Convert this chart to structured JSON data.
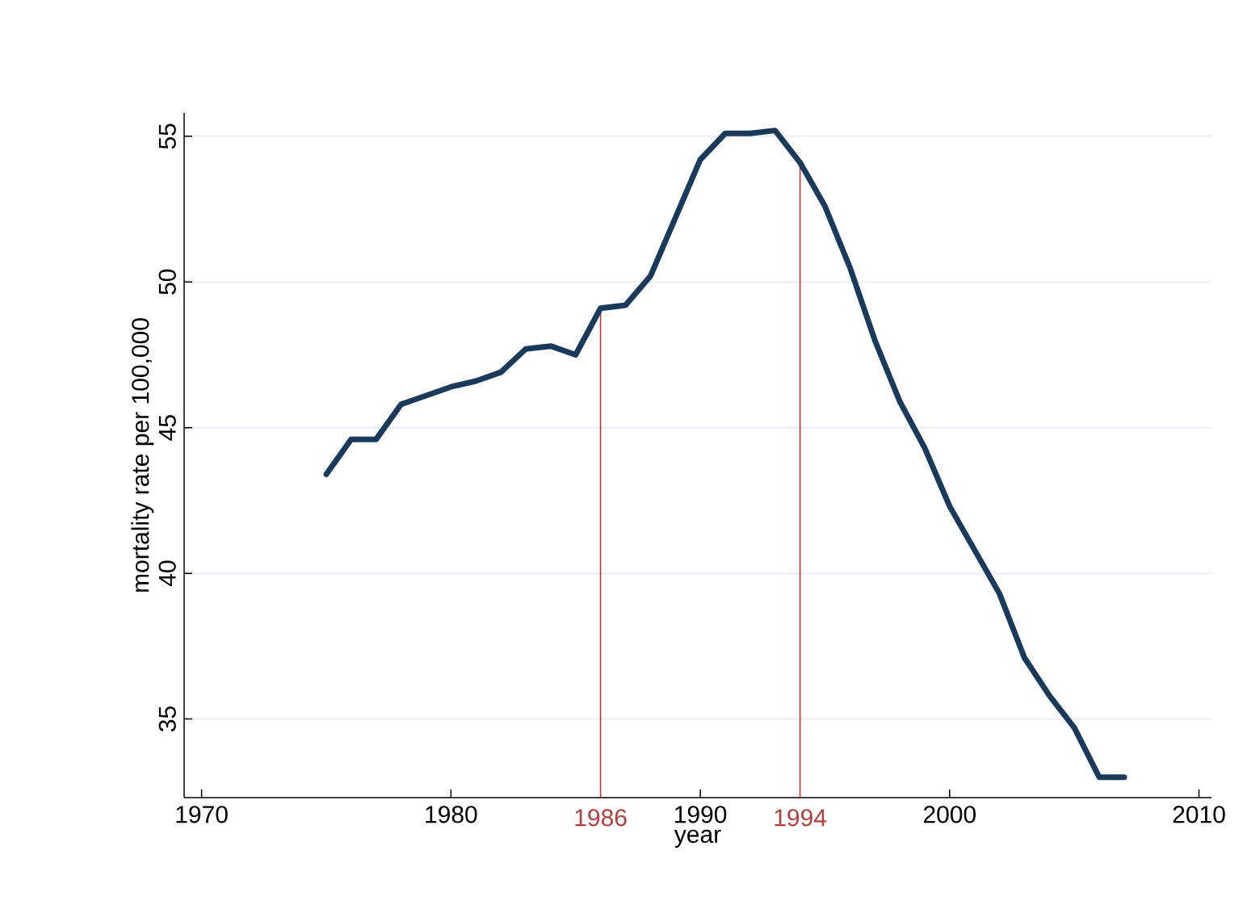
{
  "chart_data": {
    "type": "line",
    "xlabel": "year",
    "ylabel": "mortality rate per 100,000",
    "x": [
      1975,
      1976,
      1977,
      1978,
      1979,
      1980,
      1981,
      1982,
      1983,
      1984,
      1985,
      1986,
      1987,
      1988,
      1989,
      1990,
      1991,
      1992,
      1993,
      1994,
      1995,
      1996,
      1997,
      1998,
      1999,
      2000,
      2001,
      2002,
      2003,
      2004,
      2005,
      2006,
      2007
    ],
    "series": [
      {
        "color": "#1a3a5c",
        "values": [
          43.4,
          44.6,
          44.6,
          45.8,
          46.1,
          46.4,
          46.6,
          46.9,
          47.7,
          47.8,
          47.5,
          49.1,
          49.2,
          50.2,
          52.2,
          54.2,
          55.1,
          55.1,
          55.2,
          54.1,
          52.6,
          50.5,
          48.0,
          45.9,
          44.3,
          42.3,
          40.8,
          39.3,
          37.1,
          35.8,
          34.7,
          33.0,
          33.0
        ]
      }
    ],
    "xlim": [
      1969.3,
      2010.5
    ],
    "ylim": [
      32.3,
      55.8
    ],
    "xticks": [
      1970,
      1980,
      1990,
      2000,
      2010
    ],
    "yticks": [
      35,
      40,
      45,
      50,
      55
    ],
    "grid": "y",
    "marker": "none",
    "line_style": "solid",
    "ref_lines": [
      {
        "axis": "x",
        "value": 1986,
        "label": "1986",
        "color": "#d62728"
      },
      {
        "axis": "x",
        "value": 1994,
        "label": "1994",
        "color": "#d62728"
      }
    ]
  }
}
